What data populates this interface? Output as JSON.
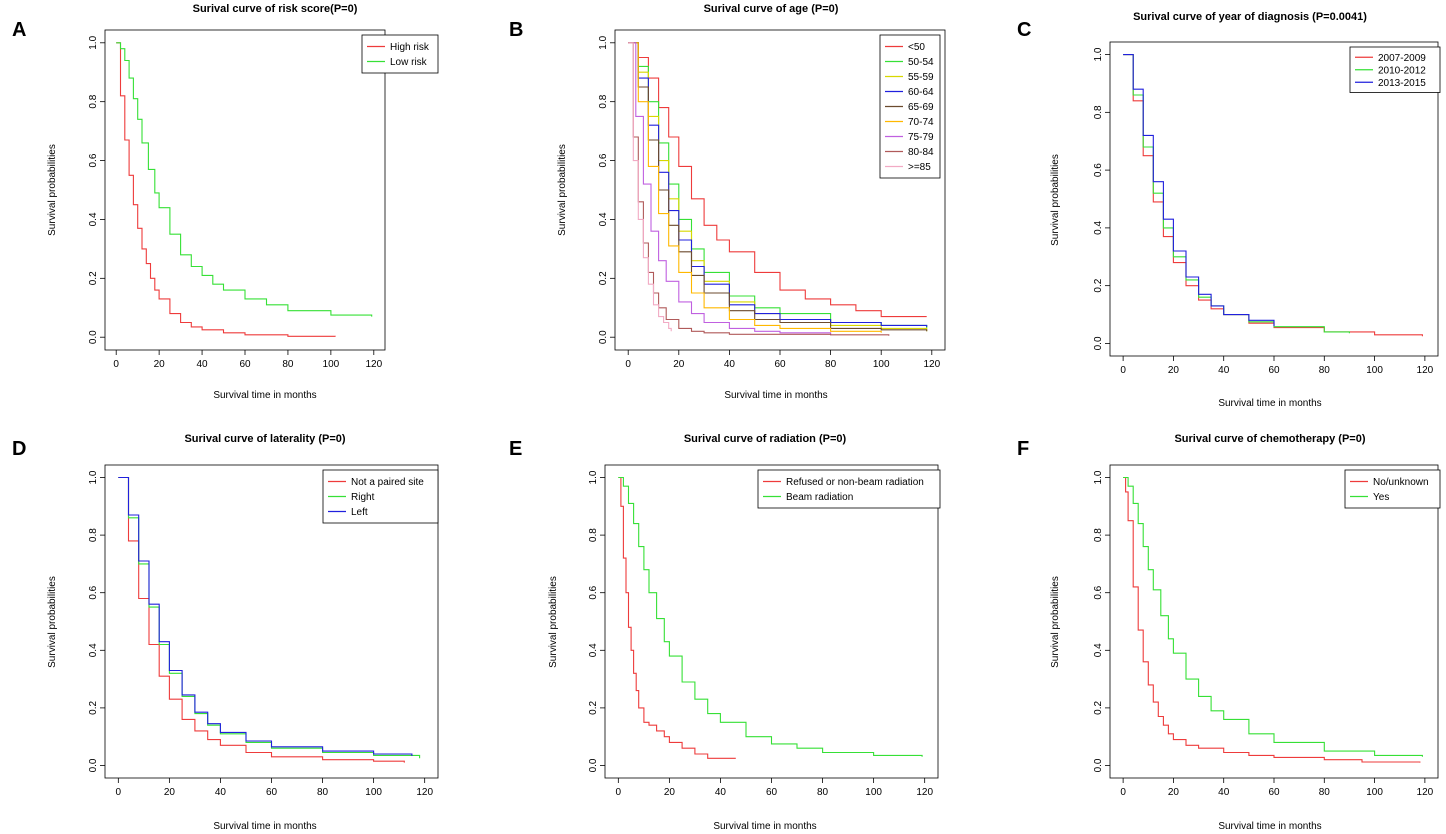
{
  "chart_data": [
    {
      "type": "line",
      "letter": "A",
      "title": "Surival curve of risk score(P=0)",
      "xlabel": "Survival time in months",
      "ylabel": "Survival probabilities",
      "xlim": [
        0,
        120
      ],
      "ylim": [
        0,
        1
      ],
      "xticks": [
        0,
        20,
        40,
        60,
        80,
        100,
        120
      ],
      "yticks": [
        0.0,
        0.2,
        0.4,
        0.6,
        0.8,
        1.0
      ],
      "legend_position": "top-right",
      "series": [
        {
          "name": "High risk",
          "color": "#ee3b3b",
          "x": [
            0,
            2,
            4,
            6,
            8,
            10,
            12,
            14,
            16,
            18,
            20,
            25,
            30,
            35,
            40,
            50,
            60,
            80,
            102
          ],
          "y": [
            1.0,
            0.82,
            0.67,
            0.55,
            0.45,
            0.37,
            0.3,
            0.25,
            0.2,
            0.16,
            0.13,
            0.08,
            0.05,
            0.035,
            0.025,
            0.015,
            0.008,
            0.003,
            0.002
          ]
        },
        {
          "name": "Low risk",
          "color": "#36e036",
          "x": [
            0,
            2,
            4,
            6,
            8,
            10,
            12,
            15,
            18,
            20,
            25,
            30,
            35,
            40,
            45,
            50,
            60,
            70,
            80,
            100,
            119
          ],
          "y": [
            1.0,
            0.98,
            0.94,
            0.88,
            0.81,
            0.74,
            0.66,
            0.57,
            0.49,
            0.44,
            0.35,
            0.28,
            0.24,
            0.21,
            0.18,
            0.16,
            0.13,
            0.11,
            0.09,
            0.075,
            0.07
          ]
        }
      ]
    },
    {
      "type": "line",
      "letter": "B",
      "title": "Surival curve of age (P=0)",
      "xlabel": "Survival time in months",
      "ylabel": "Survival probabilities",
      "xlim": [
        0,
        120
      ],
      "ylim": [
        0,
        1
      ],
      "xticks": [
        0,
        20,
        40,
        60,
        80,
        100,
        120
      ],
      "yticks": [
        0.0,
        0.2,
        0.4,
        0.6,
        0.8,
        1.0
      ],
      "legend_position": "top-right",
      "series": [
        {
          "name": "<50",
          "color": "#ee3b3b",
          "x": [
            0,
            4,
            8,
            12,
            16,
            20,
            25,
            30,
            35,
            40,
            50,
            60,
            70,
            80,
            90,
            100,
            118
          ],
          "y": [
            1.0,
            0.95,
            0.88,
            0.78,
            0.68,
            0.58,
            0.47,
            0.38,
            0.33,
            0.29,
            0.22,
            0.16,
            0.13,
            0.11,
            0.09,
            0.07,
            0.07
          ]
        },
        {
          "name": "50-54",
          "color": "#36e036",
          "x": [
            0,
            4,
            8,
            12,
            16,
            20,
            25,
            30,
            40,
            50,
            60,
            80,
            100,
            118
          ],
          "y": [
            1.0,
            0.92,
            0.8,
            0.66,
            0.52,
            0.4,
            0.3,
            0.22,
            0.14,
            0.1,
            0.08,
            0.05,
            0.04,
            0.03
          ]
        },
        {
          "name": "55-59",
          "color": "#d8d800",
          "x": [
            0,
            4,
            8,
            12,
            16,
            20,
            25,
            30,
            40,
            50,
            60,
            80,
            100,
            118
          ],
          "y": [
            1.0,
            0.9,
            0.75,
            0.6,
            0.47,
            0.36,
            0.26,
            0.19,
            0.12,
            0.08,
            0.06,
            0.04,
            0.03,
            0.02
          ]
        },
        {
          "name": "60-64",
          "color": "#2020dd",
          "x": [
            0,
            4,
            8,
            12,
            16,
            20,
            25,
            30,
            40,
            50,
            60,
            80,
            100,
            118
          ],
          "y": [
            1.0,
            0.88,
            0.72,
            0.56,
            0.43,
            0.33,
            0.24,
            0.18,
            0.11,
            0.08,
            0.06,
            0.05,
            0.04,
            0.035
          ]
        },
        {
          "name": "65-69",
          "color": "#6b4a2e",
          "x": [
            0,
            4,
            8,
            12,
            16,
            20,
            25,
            30,
            40,
            50,
            60,
            80,
            100,
            118
          ],
          "y": [
            1.0,
            0.85,
            0.67,
            0.5,
            0.38,
            0.29,
            0.21,
            0.15,
            0.09,
            0.06,
            0.05,
            0.03,
            0.025,
            0.02
          ]
        },
        {
          "name": "70-74",
          "color": "#ffb800",
          "x": [
            0,
            4,
            8,
            12,
            16,
            20,
            25,
            30,
            40,
            50,
            60,
            80,
            100
          ],
          "y": [
            1.0,
            0.8,
            0.58,
            0.42,
            0.31,
            0.22,
            0.15,
            0.1,
            0.06,
            0.04,
            0.03,
            0.02,
            0.015
          ]
        },
        {
          "name": "75-79",
          "color": "#c060e0",
          "x": [
            0,
            3,
            6,
            9,
            12,
            15,
            20,
            25,
            30,
            40,
            50,
            60,
            80
          ],
          "y": [
            1.0,
            0.75,
            0.52,
            0.36,
            0.26,
            0.19,
            0.12,
            0.08,
            0.05,
            0.03,
            0.02,
            0.015,
            0.01
          ]
        },
        {
          "name": "80-84",
          "color": "#b05a5a",
          "x": [
            0,
            2,
            4,
            6,
            8,
            10,
            12,
            15,
            20,
            25,
            30,
            40,
            60,
            80,
            103
          ],
          "y": [
            1.0,
            0.68,
            0.46,
            0.32,
            0.22,
            0.15,
            0.1,
            0.06,
            0.03,
            0.02,
            0.015,
            0.01,
            0.01,
            0.008,
            0.005
          ]
        },
        {
          "name": ">=85",
          "color": "#f2aac4",
          "x": [
            0,
            2,
            4,
            6,
            8,
            10,
            12,
            14,
            16,
            17
          ],
          "y": [
            1.0,
            0.6,
            0.4,
            0.27,
            0.18,
            0.11,
            0.07,
            0.05,
            0.03,
            0.02
          ]
        }
      ]
    },
    {
      "type": "line",
      "letter": "C",
      "title": "Surival curve of year of diagnosis (P=0.0041)",
      "xlabel": "Survival time in months",
      "ylabel": "Survival probabilities",
      "xlim": [
        0,
        120
      ],
      "ylim": [
        0,
        1
      ],
      "xticks": [
        0,
        20,
        40,
        60,
        80,
        100,
        120
      ],
      "yticks": [
        0.0,
        0.2,
        0.4,
        0.6,
        0.8,
        1.0
      ],
      "legend_position": "top-right",
      "series": [
        {
          "name": "2007-2009",
          "color": "#ee3b3b",
          "x": [
            0,
            4,
            8,
            12,
            16,
            20,
            25,
            30,
            35,
            40,
            50,
            60,
            80,
            100,
            119
          ],
          "y": [
            1.0,
            0.84,
            0.65,
            0.49,
            0.37,
            0.28,
            0.2,
            0.15,
            0.12,
            0.1,
            0.07,
            0.055,
            0.04,
            0.03,
            0.025
          ]
        },
        {
          "name": "2010-2012",
          "color": "#36e036",
          "x": [
            0,
            4,
            8,
            12,
            16,
            20,
            25,
            30,
            35,
            40,
            50,
            60,
            80,
            90
          ],
          "y": [
            1.0,
            0.86,
            0.68,
            0.52,
            0.4,
            0.3,
            0.22,
            0.16,
            0.13,
            0.1,
            0.075,
            0.058,
            0.04,
            0.035
          ]
        },
        {
          "name": "2013-2015",
          "color": "#2020dd",
          "x": [
            0,
            4,
            8,
            12,
            16,
            20,
            25,
            30,
            35,
            40,
            50,
            60
          ],
          "y": [
            1.0,
            0.88,
            0.72,
            0.56,
            0.43,
            0.32,
            0.23,
            0.17,
            0.13,
            0.1,
            0.08,
            0.06
          ]
        }
      ]
    },
    {
      "type": "line",
      "letter": "D",
      "title": "Surival curve of laterality (P=0)",
      "xlabel": "Survival time in months",
      "ylabel": "Survival probabilities",
      "xlim": [
        0,
        120
      ],
      "ylim": [
        0,
        1
      ],
      "xticks": [
        0,
        20,
        40,
        60,
        80,
        100,
        120
      ],
      "yticks": [
        0.0,
        0.2,
        0.4,
        0.6,
        0.8,
        1.0
      ],
      "legend_position": "top-right",
      "series": [
        {
          "name": "Not a paired site",
          "color": "#ee3b3b",
          "x": [
            0,
            4,
            8,
            12,
            16,
            20,
            25,
            30,
            35,
            40,
            50,
            60,
            80,
            100,
            112
          ],
          "y": [
            1.0,
            0.78,
            0.58,
            0.42,
            0.31,
            0.23,
            0.16,
            0.12,
            0.09,
            0.07,
            0.045,
            0.03,
            0.02,
            0.015,
            0.01
          ]
        },
        {
          "name": "Right",
          "color": "#36e036",
          "x": [
            0,
            4,
            8,
            12,
            16,
            20,
            25,
            30,
            35,
            40,
            50,
            60,
            80,
            100,
            118
          ],
          "y": [
            1.0,
            0.86,
            0.7,
            0.55,
            0.42,
            0.32,
            0.24,
            0.18,
            0.14,
            0.11,
            0.08,
            0.06,
            0.045,
            0.035,
            0.025
          ]
        },
        {
          "name": "Left",
          "color": "#2020dd",
          "x": [
            0,
            4,
            8,
            12,
            16,
            20,
            25,
            30,
            35,
            40,
            50,
            60,
            80,
            100,
            115
          ],
          "y": [
            1.0,
            0.87,
            0.71,
            0.56,
            0.43,
            0.33,
            0.245,
            0.185,
            0.145,
            0.115,
            0.085,
            0.065,
            0.05,
            0.04,
            0.033
          ]
        }
      ]
    },
    {
      "type": "line",
      "letter": "E",
      "title": "Surival curve of radiation (P=0)",
      "xlabel": "Survival time in months",
      "ylabel": "Survival probabilities",
      "xlim": [
        0,
        120
      ],
      "ylim": [
        0,
        1
      ],
      "xticks": [
        0,
        20,
        40,
        60,
        80,
        100,
        120
      ],
      "yticks": [
        0.0,
        0.2,
        0.4,
        0.6,
        0.8,
        1.0
      ],
      "legend_position": "top-right",
      "series": [
        {
          "name": "Refused or non-beam radiation",
          "color": "#ee3b3b",
          "x": [
            0,
            1,
            2,
            3,
            4,
            5,
            6,
            7,
            8,
            10,
            12,
            15,
            18,
            20,
            25,
            30,
            35,
            46
          ],
          "y": [
            1.0,
            0.9,
            0.72,
            0.6,
            0.48,
            0.4,
            0.32,
            0.26,
            0.2,
            0.15,
            0.14,
            0.12,
            0.1,
            0.08,
            0.06,
            0.04,
            0.025,
            0.025
          ]
        },
        {
          "name": "Beam radiation",
          "color": "#36e036",
          "x": [
            0,
            2,
            4,
            6,
            8,
            10,
            12,
            15,
            18,
            20,
            25,
            30,
            35,
            40,
            50,
            60,
            70,
            80,
            100,
            119
          ],
          "y": [
            1.0,
            0.97,
            0.91,
            0.84,
            0.76,
            0.68,
            0.6,
            0.51,
            0.43,
            0.38,
            0.29,
            0.23,
            0.18,
            0.15,
            0.1,
            0.075,
            0.06,
            0.045,
            0.035,
            0.03
          ]
        }
      ]
    },
    {
      "type": "line",
      "letter": "F",
      "title": "Surival curve of chemotherapy (P=0)",
      "xlabel": "Survival time in months",
      "ylabel": "Survival probabilities",
      "xlim": [
        0,
        120
      ],
      "ylim": [
        0,
        1
      ],
      "xticks": [
        0,
        20,
        40,
        60,
        80,
        100,
        120
      ],
      "yticks": [
        0.0,
        0.2,
        0.4,
        0.6,
        0.8,
        1.0
      ],
      "legend_position": "top-right",
      "series": [
        {
          "name": "No/unknown",
          "color": "#ee3b3b",
          "x": [
            0,
            1,
            2,
            4,
            6,
            8,
            10,
            12,
            14,
            16,
            18,
            20,
            25,
            30,
            40,
            50,
            60,
            80,
            95,
            118
          ],
          "y": [
            1.0,
            0.95,
            0.85,
            0.62,
            0.47,
            0.36,
            0.28,
            0.22,
            0.17,
            0.14,
            0.11,
            0.09,
            0.07,
            0.06,
            0.045,
            0.035,
            0.028,
            0.02,
            0.012,
            0.01
          ]
        },
        {
          "name": "Yes",
          "color": "#36e036",
          "x": [
            0,
            2,
            4,
            6,
            8,
            10,
            12,
            15,
            18,
            20,
            25,
            30,
            35,
            40,
            50,
            60,
            80,
            100,
            119
          ],
          "y": [
            1.0,
            0.97,
            0.91,
            0.84,
            0.76,
            0.68,
            0.61,
            0.52,
            0.44,
            0.39,
            0.3,
            0.24,
            0.19,
            0.16,
            0.11,
            0.08,
            0.05,
            0.035,
            0.03
          ]
        }
      ]
    }
  ]
}
